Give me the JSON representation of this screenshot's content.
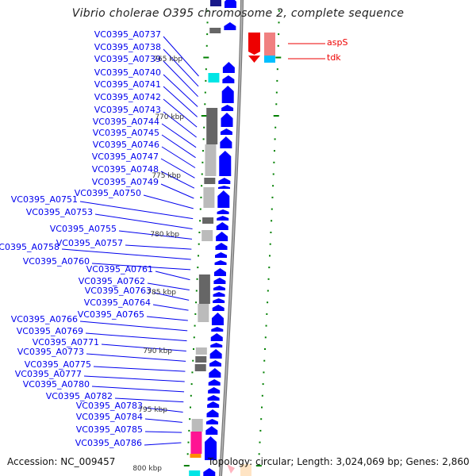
{
  "title": "Vibrio cholerae O395 chromosome 2, complete sequence",
  "gene_labels": [
    "VC0395_A0737",
    "VC0395_A0738",
    "VC0395_A0739",
    "VC0395_A0740",
    "VC0395_A0741",
    "VC0395_A0742",
    "VC0395_A0743",
    "VC0395_A0744",
    "VC0395_A0745",
    "VC0395_A0746",
    "VC0395_A0747",
    "VC0395_A0748",
    "VC0395_A0749",
    "VC0395_A0750",
    "VC0395_A0751",
    "VC0395_A0753",
    "VC0395_A0755",
    "VC0395_A0757",
    "VC0395_A0758",
    "VC0395_A0760",
    "VC0395_A0761",
    "VC0395_A0762",
    "VC0395_A0763",
    "VC0395_A0764",
    "VC0395_A0765",
    "VC0395_A0766",
    "VC0395_A0769",
    "VC0395_A0771",
    "VC0395_A0773",
    "VC0395_A0775",
    "VC0395_A0777",
    "VC0395_A0780",
    "VC0395_A0782",
    "VC0395_A0783",
    "VC0395_A0784",
    "VC0395_A0785",
    "VC0395_A0786"
  ],
  "right_labels": [
    "aspS",
    "tdk"
  ],
  "kbp_labels": [
    "765 kbp",
    "770 kbp",
    "775 kbp",
    "780 kbp",
    "785 kbp",
    "790 kbp",
    "795 kbp",
    "800 kbp"
  ],
  "footer": {
    "accession": "Accession: NC_009457",
    "topology": "Topology: circular; Length: 3,024,069 bp; Genes: 2,860"
  },
  "colors": {
    "link": "#0000ee",
    "gene_forward": "#0000ff",
    "gene_red": "#ee0000",
    "tick": "#008000"
  }
}
